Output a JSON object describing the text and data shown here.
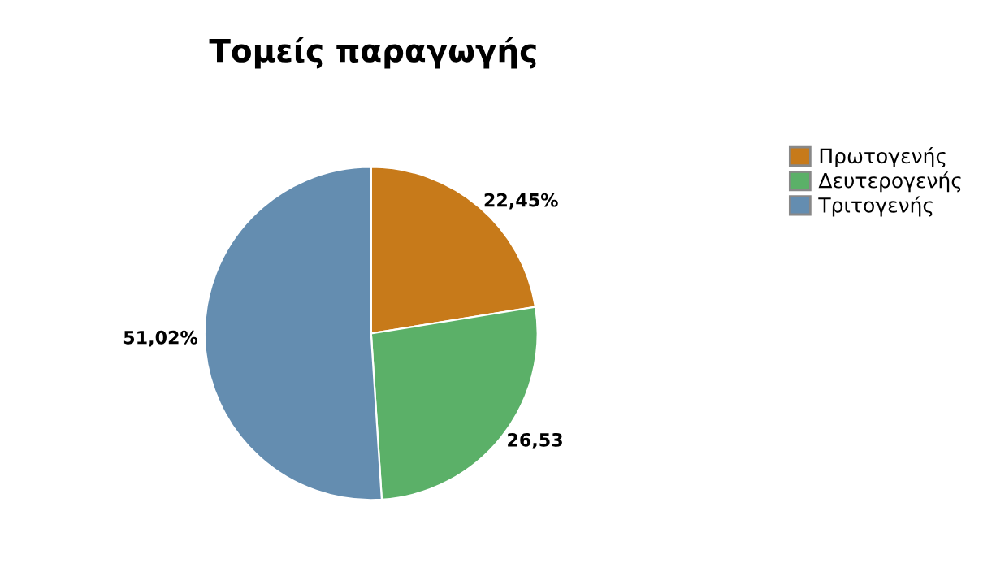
{
  "chart_data": {
    "type": "pie",
    "title": "Τομείς παραγωγής",
    "categories": [
      "Πρωτογενής",
      "Δευτερογενής",
      "Τριτογενής"
    ],
    "values": [
      22.45,
      26.53,
      51.02
    ],
    "value_labels": [
      "22,45%",
      "26,53",
      "51,02%"
    ],
    "colors": [
      "#c77a1a",
      "#5bb068",
      "#648db0"
    ],
    "legend": "right"
  }
}
